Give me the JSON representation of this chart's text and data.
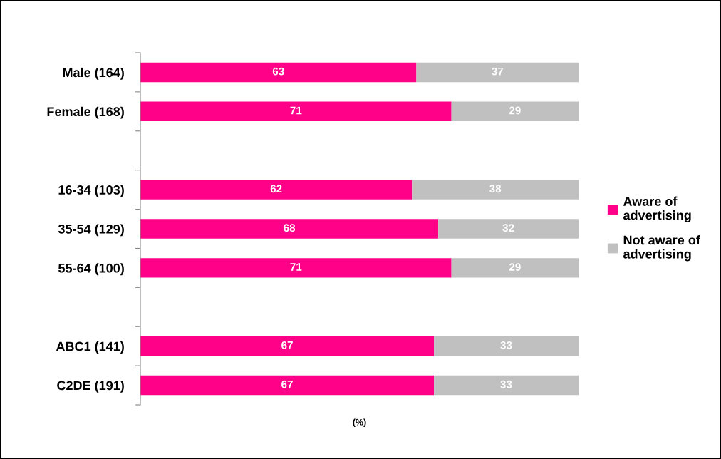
{
  "chart_data": {
    "type": "bar",
    "orientation": "horizontal",
    "stacked": true,
    "xlabel": "(%)",
    "categories": [
      "Male (164)",
      "Female (168)",
      null,
      "16-34 (103)",
      "35-54 (129)",
      "55-64 (100)",
      null,
      "ABC1 (141)",
      "C2DE (191)"
    ],
    "series": [
      {
        "name": "Aware of\nadvertising",
        "color": "#ff0088",
        "values": [
          63,
          71,
          null,
          62,
          68,
          71,
          null,
          67,
          67
        ]
      },
      {
        "name": "Not aware of\nadvertising",
        "color": "#c0c0c0",
        "values": [
          37,
          29,
          null,
          38,
          32,
          29,
          null,
          33,
          33
        ]
      }
    ],
    "data_labels": true,
    "legend": "right",
    "grid": false,
    "tick_labels": "y"
  }
}
